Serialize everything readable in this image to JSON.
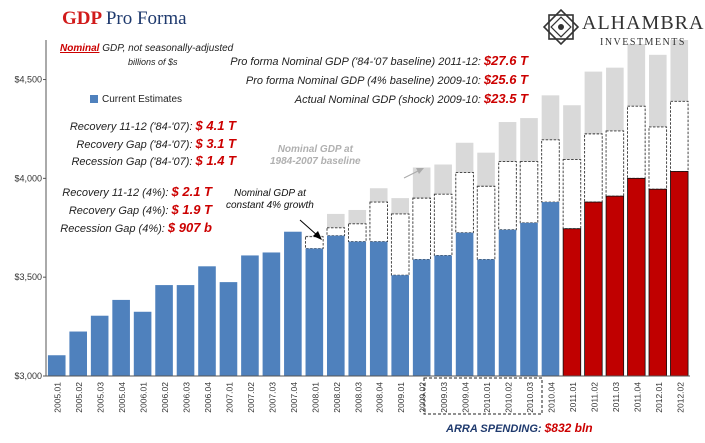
{
  "title": {
    "part1": "GDP",
    "part2": "Pro Forma"
  },
  "logo": {
    "name": "ALHAMBRA",
    "sub": "INVESTMENTS",
    "mark": "alhambra-star-icon"
  },
  "notes": {
    "nominal_word": "Nominal",
    "line1_rest": " GDP, not seasonally-adjusted",
    "line2": "billions of $s"
  },
  "right_stats": [
    {
      "label": "Pro forma Nominal GDP ('84-'07 baseline) 2011-12: ",
      "value": "$27.6 T"
    },
    {
      "label": "Pro forma Nominal GDP (4% baseline) 2009-10: ",
      "value": "$25.6 T"
    },
    {
      "label": "Actual Nominal GDP (shock) 2009-10: ",
      "value": "$23.5 T"
    }
  ],
  "left_stats_a": [
    {
      "label": "Recovery 11-12 ('84-'07): ",
      "value": "$  4.1 T"
    },
    {
      "label": "Recovery Gap ('84-'07): ",
      "value": "$  3.1 T"
    },
    {
      "label": "Recession Gap ('84-'07): ",
      "value": "$  1.4 T"
    }
  ],
  "left_stats_b": [
    {
      "label": "Recovery 11-12 (4%): ",
      "value": "$  2.1 T"
    },
    {
      "label": "Recovery Gap (4%): ",
      "value": "$  1.9 T"
    },
    {
      "label": "Recession Gap (4%): ",
      "value": "$ 907 b"
    }
  ],
  "annotations": {
    "baseline_1984": [
      "Nominal GDP at",
      "1984-2007 baseline"
    ],
    "constant_4pct": [
      "Nominal GDP at",
      "constant 4% growth"
    ]
  },
  "arra": {
    "label": "ARRA SPENDING: ",
    "value": "$832 bln"
  },
  "colors": {
    "actual": "#4f81bd",
    "actual_recovery": "#c00000",
    "baseline_1984": "#d9d9d9",
    "title_red": "#d11a1a",
    "title_navy": "#1f3a6e"
  },
  "chart_data": {
    "type": "bar",
    "title": "GDP Pro Forma",
    "xlabel": "",
    "ylabel": "",
    "ylim": [
      3000,
      4700
    ],
    "y_ticks": [
      3000,
      3500,
      4000,
      4500
    ],
    "y_tick_labels": [
      "$3,000",
      "$3,500",
      "$4,000",
      "$4,500"
    ],
    "legend": [
      "Current Estimates"
    ],
    "legend_position": "top-left",
    "grid": false,
    "categories": [
      "2005.01",
      "2005.02",
      "2005.03",
      "2005.04",
      "2006.01",
      "2006.02",
      "2006.03",
      "2006.04",
      "2007.01",
      "2007.02",
      "2007.03",
      "2007.04",
      "2008.01",
      "2008.02",
      "2008.03",
      "2008.04",
      "2009.01",
      "2009.02",
      "2009.03",
      "2009.04",
      "2010.01",
      "2010.02",
      "2010.03",
      "2010.04",
      "2011.01",
      "2011.02",
      "2011.03",
      "2011.04",
      "2012.01",
      "2012.02"
    ],
    "series": [
      {
        "name": "Current Estimates",
        "values": [
          3105,
          3225,
          3305,
          3385,
          3325,
          3460,
          3460,
          3555,
          3475,
          3610,
          3625,
          3730,
          3645,
          3710,
          3680,
          3680,
          3510,
          3590,
          3610,
          3725,
          3590,
          3740,
          3775,
          3880,
          3745,
          3880,
          3910,
          4000,
          3945,
          4035
        ]
      },
      {
        "values": [
          null,
          null,
          null,
          null,
          null,
          null,
          null,
          null,
          null,
          null,
          null,
          null,
          3705,
          3750,
          3770,
          3880,
          3820,
          3900,
          3920,
          4030,
          3960,
          4085,
          4085,
          4195,
          4095,
          4225,
          4240,
          4365,
          4260,
          4390
        ]
      },
      {
        "values": [
          null,
          null,
          null,
          null,
          null,
          null,
          null,
          null,
          null,
          null,
          null,
          null,
          3710,
          3820,
          3840,
          3950,
          3900,
          4055,
          4070,
          4180,
          4130,
          4285,
          4305,
          4420,
          4370,
          4540,
          4560,
          4680,
          4625,
          4700
        ]
      }
    ]
  }
}
